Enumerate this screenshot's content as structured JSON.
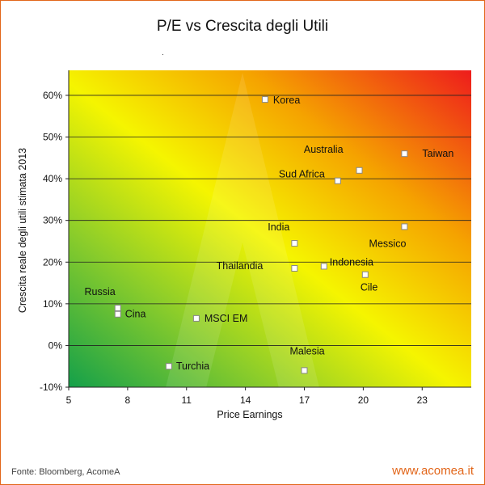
{
  "chart_data": {
    "type": "scatter",
    "title": "P/E vs Crescita degli Utili",
    "xlabel": "Price Earnings",
    "ylabel": "Crescita  reale  degli utili stimata 2013",
    "xlim": [
      5,
      25.5
    ],
    "ylim": [
      -10,
      66
    ],
    "x_ticks": [
      "5",
      "8",
      "11",
      "14",
      "17",
      "20",
      "23"
    ],
    "y_ticks": [
      "-10%",
      "0%",
      "10%",
      "20%",
      "30%",
      "40%",
      "50%",
      "60%"
    ],
    "x_tick_values": [
      5,
      8,
      11,
      14,
      17,
      20,
      23
    ],
    "y_tick_values": [
      -10,
      0,
      10,
      20,
      30,
      40,
      50,
      60
    ],
    "grid": "horizontal",
    "background": "gradient green (bottom-left) to yellow to red (top-right)",
    "points": [
      {
        "label": "Korea",
        "x": 15.0,
        "y": 59
      },
      {
        "label": "Taiwan",
        "x": 22.1,
        "y": 46
      },
      {
        "label": "Australia",
        "x": 19.8,
        "y": 42
      },
      {
        "label": "Sud Africa",
        "x": 18.7,
        "y": 39.5
      },
      {
        "label": "Messico",
        "x": 22.1,
        "y": 28.5
      },
      {
        "label": "India",
        "x": 16.5,
        "y": 24.5
      },
      {
        "label": "Indonesia",
        "x": 18.0,
        "y": 19
      },
      {
        "label": "Thailandia",
        "x": 16.5,
        "y": 18.5
      },
      {
        "label": "Cile",
        "x": 20.1,
        "y": 17
      },
      {
        "label": "Russia",
        "x": 7.5,
        "y": 9
      },
      {
        "label": "Cina",
        "x": 7.5,
        "y": 7.5
      },
      {
        "label": "MSCI EM",
        "x": 11.5,
        "y": 6.5
      },
      {
        "label": "Turchia",
        "x": 10.1,
        "y": -5
      },
      {
        "label": "Malesia",
        "x": 17.0,
        "y": -6
      }
    ],
    "colors": {
      "marker_fill": "#ffffff",
      "marker_stroke": "#888888",
      "gradient_green": "#1aa64a",
      "gradient_yellow": "#f5f500",
      "gradient_red": "#ee1c1c"
    }
  },
  "dot_mark": ".",
  "footer": {
    "source": "Fonte: Bloomberg, AcomeA",
    "site": "www.acomea.it"
  }
}
